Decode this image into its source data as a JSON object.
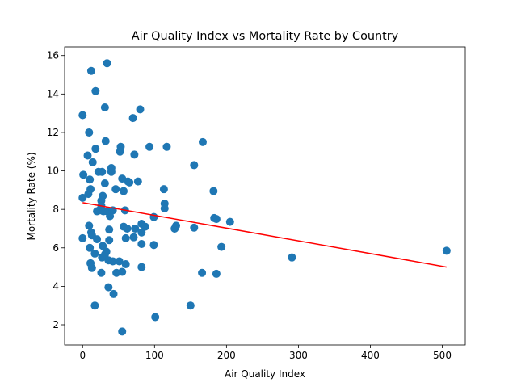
{
  "chart_data": {
    "type": "scatter",
    "title": "Air Quality Index vs Mortality Rate by Country",
    "xlabel": "Air Quality Index",
    "ylabel": "Mortality Rate (%)",
    "xlim": [
      -25,
      532
    ],
    "ylim": [
      0.95,
      16.45
    ],
    "x_ticks": [
      0,
      100,
      200,
      300,
      400,
      500
    ],
    "y_ticks": [
      2,
      4,
      6,
      8,
      10,
      12,
      14,
      16
    ],
    "grid": false,
    "point_color": "#1f77b4",
    "trend_color": "#ff0000",
    "trend_line": {
      "x": [
        0,
        506
      ],
      "y": [
        8.35,
        5.0
      ]
    },
    "points": [
      [
        0,
        12.9
      ],
      [
        12,
        15.2
      ],
      [
        34,
        15.6
      ],
      [
        18,
        14.15
      ],
      [
        31,
        13.3
      ],
      [
        80,
        13.2
      ],
      [
        70,
        12.75
      ],
      [
        9,
        12.0
      ],
      [
        32,
        11.55
      ],
      [
        18,
        11.15
      ],
      [
        53,
        11.25
      ],
      [
        52,
        11.0
      ],
      [
        93,
        11.25
      ],
      [
        117,
        11.25
      ],
      [
        167,
        11.5
      ],
      [
        7,
        10.8
      ],
      [
        14,
        10.45
      ],
      [
        72,
        10.85
      ],
      [
        155,
        10.3
      ],
      [
        40,
        10.15
      ],
      [
        40,
        9.95
      ],
      [
        22,
        9.95
      ],
      [
        27,
        9.95
      ],
      [
        1,
        9.8
      ],
      [
        10,
        9.55
      ],
      [
        31,
        9.35
      ],
      [
        55,
        9.6
      ],
      [
        63,
        9.45
      ],
      [
        65,
        9.4
      ],
      [
        77,
        9.45
      ],
      [
        11,
        9.05
      ],
      [
        46,
        9.05
      ],
      [
        57,
        8.95
      ],
      [
        113,
        9.05
      ],
      [
        182,
        8.95
      ],
      [
        8,
        8.8
      ],
      [
        28,
        8.7
      ],
      [
        0,
        8.6
      ],
      [
        26,
        8.45
      ],
      [
        114,
        8.3
      ],
      [
        114,
        8.05
      ],
      [
        26,
        8.2
      ],
      [
        23,
        7.95
      ],
      [
        20,
        7.9
      ],
      [
        29,
        7.9
      ],
      [
        34,
        7.9
      ],
      [
        42,
        7.95
      ],
      [
        59,
        7.95
      ],
      [
        38,
        7.65
      ],
      [
        99,
        7.6
      ],
      [
        183,
        7.55
      ],
      [
        186,
        7.5
      ],
      [
        205,
        7.35
      ],
      [
        82,
        7.25
      ],
      [
        87,
        7.1
      ],
      [
        57,
        7.1
      ],
      [
        62,
        7.0
      ],
      [
        73,
        7.0
      ],
      [
        130,
        7.15
      ],
      [
        128,
        7.0
      ],
      [
        155,
        7.05
      ],
      [
        9,
        7.15
      ],
      [
        12,
        6.8
      ],
      [
        13,
        6.65
      ],
      [
        37,
        6.95
      ],
      [
        82,
        6.8
      ],
      [
        71,
        6.55
      ],
      [
        60,
        6.5
      ],
      [
        0,
        6.5
      ],
      [
        20,
        6.45
      ],
      [
        37,
        6.4
      ],
      [
        28,
        6.1
      ],
      [
        82,
        6.2
      ],
      [
        99,
        6.15
      ],
      [
        193,
        6.05
      ],
      [
        10,
        6.0
      ],
      [
        17,
        5.7
      ],
      [
        33,
        5.8
      ],
      [
        31,
        5.65
      ],
      [
        27,
        5.5
      ],
      [
        36,
        5.35
      ],
      [
        42,
        5.3
      ],
      [
        51,
        5.3
      ],
      [
        60,
        5.15
      ],
      [
        11,
        5.2
      ],
      [
        13,
        4.95
      ],
      [
        82,
        5.0
      ],
      [
        291,
        5.5
      ],
      [
        506,
        5.85
      ],
      [
        26,
        4.7
      ],
      [
        47,
        4.7
      ],
      [
        55,
        4.75
      ],
      [
        166,
        4.7
      ],
      [
        186,
        4.65
      ],
      [
        36,
        3.95
      ],
      [
        43,
        3.6
      ],
      [
        17,
        3.0
      ],
      [
        150,
        3.0
      ],
      [
        101,
        2.4
      ],
      [
        55,
        1.65
      ]
    ]
  }
}
